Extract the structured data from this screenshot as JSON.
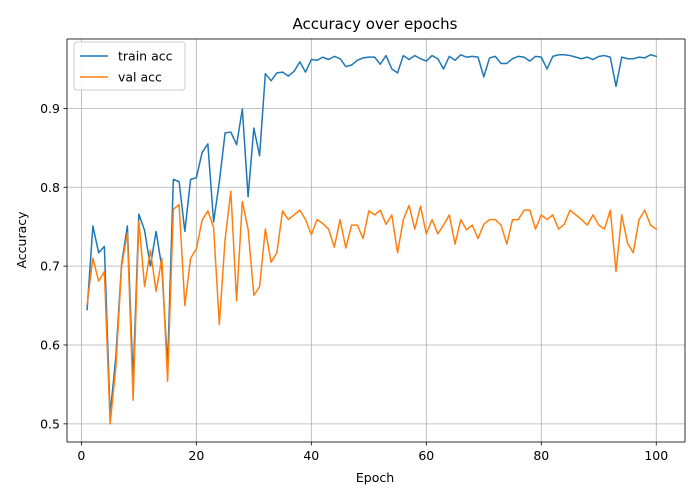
{
  "chart_data": {
    "type": "line",
    "title": "Accuracy over epochs",
    "xlabel": "Epoch",
    "ylabel": "Accuracy",
    "xlim": [
      -2.5,
      105
    ],
    "ylim": [
      0.477,
      0.988
    ],
    "xticks": [
      0,
      20,
      40,
      60,
      80,
      100
    ],
    "yticks": [
      0.5,
      0.6,
      0.7,
      0.8,
      0.9
    ],
    "grid": true,
    "legend": "top-left",
    "series": [
      {
        "name": "train acc",
        "color": "#1f77b4",
        "x": [
          1,
          2,
          3,
          4,
          5,
          6,
          7,
          8,
          9,
          10,
          11,
          12,
          13,
          14,
          15,
          16,
          17,
          18,
          19,
          20,
          21,
          22,
          23,
          24,
          25,
          26,
          27,
          28,
          29,
          30,
          31,
          32,
          33,
          34,
          35,
          36,
          37,
          38,
          39,
          40,
          41,
          42,
          43,
          44,
          45,
          46,
          47,
          48,
          49,
          50,
          51,
          52,
          53,
          54,
          55,
          56,
          57,
          58,
          59,
          60,
          61,
          62,
          63,
          64,
          65,
          66,
          67,
          68,
          69,
          70,
          71,
          72,
          73,
          74,
          75,
          76,
          77,
          78,
          79,
          80,
          81,
          82,
          83,
          84,
          85,
          86,
          87,
          88,
          89,
          90,
          91,
          92,
          93,
          94,
          95,
          96,
          97,
          98,
          99,
          100
        ],
        "values": [
          0.645,
          0.751,
          0.717,
          0.725,
          0.511,
          0.585,
          0.703,
          0.751,
          0.555,
          0.766,
          0.745,
          0.7,
          0.744,
          0.698,
          0.573,
          0.81,
          0.807,
          0.744,
          0.81,
          0.812,
          0.844,
          0.855,
          0.756,
          0.807,
          0.869,
          0.87,
          0.854,
          0.899,
          0.788,
          0.875,
          0.84,
          0.944,
          0.935,
          0.945,
          0.946,
          0.941,
          0.947,
          0.959,
          0.946,
          0.962,
          0.961,
          0.965,
          0.962,
          0.966,
          0.963,
          0.953,
          0.955,
          0.961,
          0.964,
          0.965,
          0.965,
          0.956,
          0.967,
          0.95,
          0.945,
          0.967,
          0.962,
          0.967,
          0.963,
          0.96,
          0.967,
          0.963,
          0.95,
          0.966,
          0.961,
          0.968,
          0.965,
          0.966,
          0.965,
          0.94,
          0.964,
          0.966,
          0.957,
          0.957,
          0.963,
          0.966,
          0.965,
          0.96,
          0.966,
          0.965,
          0.95,
          0.966,
          0.968,
          0.968,
          0.967,
          0.965,
          0.963,
          0.965,
          0.962,
          0.966,
          0.967,
          0.965,
          0.928,
          0.965,
          0.963,
          0.963,
          0.965,
          0.964,
          0.968,
          0.966
        ]
      },
      {
        "name": "val acc",
        "color": "#ff7f0e",
        "x": [
          1,
          2,
          3,
          4,
          5,
          6,
          7,
          8,
          9,
          10,
          11,
          12,
          13,
          14,
          15,
          16,
          17,
          18,
          19,
          20,
          21,
          22,
          23,
          24,
          25,
          26,
          27,
          28,
          29,
          30,
          31,
          32,
          33,
          34,
          35,
          36,
          37,
          38,
          39,
          40,
          41,
          42,
          43,
          44,
          45,
          46,
          47,
          48,
          49,
          50,
          51,
          52,
          53,
          54,
          55,
          56,
          57,
          58,
          59,
          60,
          61,
          62,
          63,
          64,
          65,
          66,
          67,
          68,
          69,
          70,
          71,
          72,
          73,
          74,
          75,
          76,
          77,
          78,
          79,
          80,
          81,
          82,
          83,
          84,
          85,
          86,
          87,
          88,
          89,
          90,
          91,
          92,
          93,
          94,
          95,
          96,
          97,
          98,
          99,
          100
        ],
        "values": [
          0.652,
          0.71,
          0.681,
          0.693,
          0.5,
          0.572,
          0.7,
          0.742,
          0.53,
          0.757,
          0.674,
          0.72,
          0.668,
          0.71,
          0.554,
          0.772,
          0.778,
          0.65,
          0.71,
          0.722,
          0.758,
          0.77,
          0.749,
          0.626,
          0.734,
          0.795,
          0.656,
          0.782,
          0.747,
          0.663,
          0.674,
          0.747,
          0.705,
          0.717,
          0.77,
          0.759,
          0.765,
          0.771,
          0.759,
          0.74,
          0.759,
          0.754,
          0.747,
          0.724,
          0.759,
          0.723,
          0.752,
          0.752,
          0.735,
          0.77,
          0.765,
          0.771,
          0.753,
          0.765,
          0.717,
          0.759,
          0.777,
          0.747,
          0.776,
          0.741,
          0.759,
          0.741,
          0.752,
          0.765,
          0.728,
          0.759,
          0.746,
          0.752,
          0.735,
          0.753,
          0.759,
          0.759,
          0.752,
          0.728,
          0.759,
          0.759,
          0.771,
          0.771,
          0.747,
          0.765,
          0.759,
          0.765,
          0.747,
          0.753,
          0.771,
          0.765,
          0.759,
          0.752,
          0.765,
          0.752,
          0.747,
          0.771,
          0.693,
          0.765,
          0.729,
          0.717,
          0.759,
          0.771,
          0.752,
          0.747
        ]
      }
    ]
  }
}
